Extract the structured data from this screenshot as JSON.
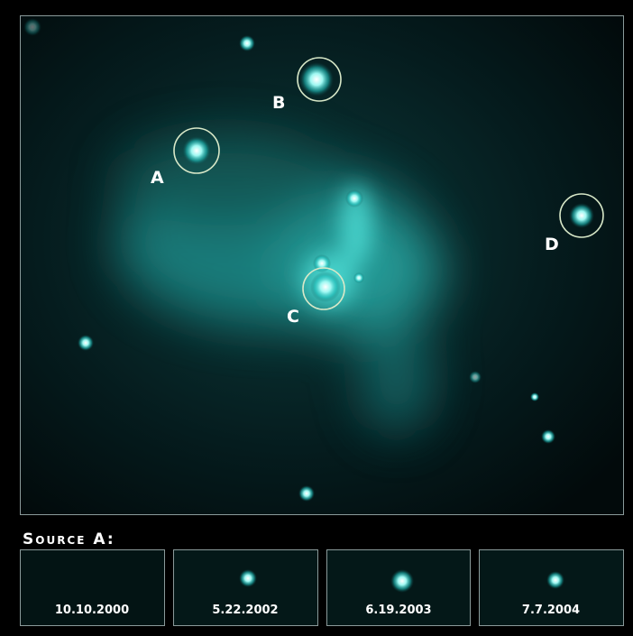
{
  "labels": [
    "A",
    "B",
    "C",
    "D"
  ],
  "caption": "Source A:",
  "thumbnails": [
    "10.10.2000",
    "5.22.2002",
    "6.19.2003",
    "7.7.2004"
  ]
}
